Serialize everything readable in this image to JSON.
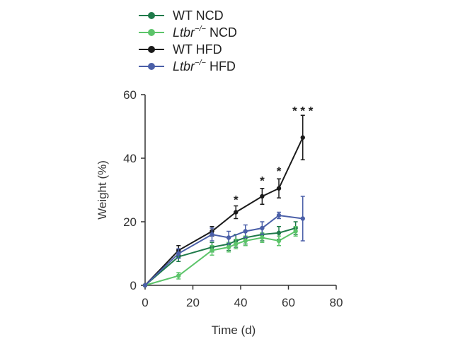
{
  "chart_data": {
    "type": "line",
    "xlabel": "Time (d)",
    "ylabel": "Weight (%)",
    "xlim": [
      0,
      80
    ],
    "ylim": [
      0,
      60
    ],
    "xticks": [
      0,
      20,
      40,
      60,
      80
    ],
    "yticks": [
      0,
      20,
      40,
      60
    ],
    "grid": false,
    "legend_position": "top",
    "series": [
      {
        "name": "WT NCD",
        "name_parts": {
          "text": "WT NCD"
        },
        "color": "#1f7a4a",
        "x": [
          0,
          14,
          28,
          35,
          38,
          42,
          49,
          56,
          63
        ],
        "y": [
          0,
          9,
          12,
          13,
          14,
          15,
          16,
          16.5,
          18
        ],
        "err": [
          0,
          1.5,
          1.5,
          2,
          2,
          2,
          2,
          2,
          2
        ]
      },
      {
        "name": "Ltbr−/− NCD",
        "name_parts": {
          "prefix": "Ltbr",
          "sup": "−/−",
          "suffix": " NCD"
        },
        "color": "#5cc46a",
        "x": [
          0,
          14,
          28,
          35,
          38,
          42,
          49,
          56,
          63
        ],
        "y": [
          0,
          3,
          11,
          12,
          13,
          14,
          15,
          14,
          17
        ],
        "err": [
          0,
          1,
          1.5,
          1.5,
          1.5,
          1.5,
          1.5,
          1.5,
          1.5
        ]
      },
      {
        "name": "WT HFD",
        "name_parts": {
          "text": "WT HFD"
        },
        "color": "#1a1a1a",
        "x": [
          0,
          14,
          28,
          38,
          49,
          56,
          66
        ],
        "y": [
          0,
          11,
          17,
          23,
          28,
          30.5,
          46.5
        ],
        "err": [
          0,
          1.5,
          1.5,
          2,
          2.5,
          3,
          7
        ]
      },
      {
        "name": "Ltbr−/− HFD",
        "name_parts": {
          "prefix": "Ltbr",
          "sup": "−/−",
          "suffix": " HFD"
        },
        "color": "#4a5fa8",
        "x": [
          0,
          14,
          28,
          35,
          42,
          49,
          56,
          66
        ],
        "y": [
          0,
          10,
          16,
          15,
          17,
          18,
          22,
          21
        ],
        "err": [
          0,
          1.5,
          2,
          2,
          2,
          2,
          1,
          7
        ]
      }
    ],
    "annotations": [
      {
        "x": 38,
        "y": 27,
        "text": "*"
      },
      {
        "x": 49,
        "y": 33,
        "text": "*"
      },
      {
        "x": 56,
        "y": 36,
        "text": "*"
      },
      {
        "x": 66,
        "y": 55,
        "text": "* * *"
      }
    ]
  }
}
